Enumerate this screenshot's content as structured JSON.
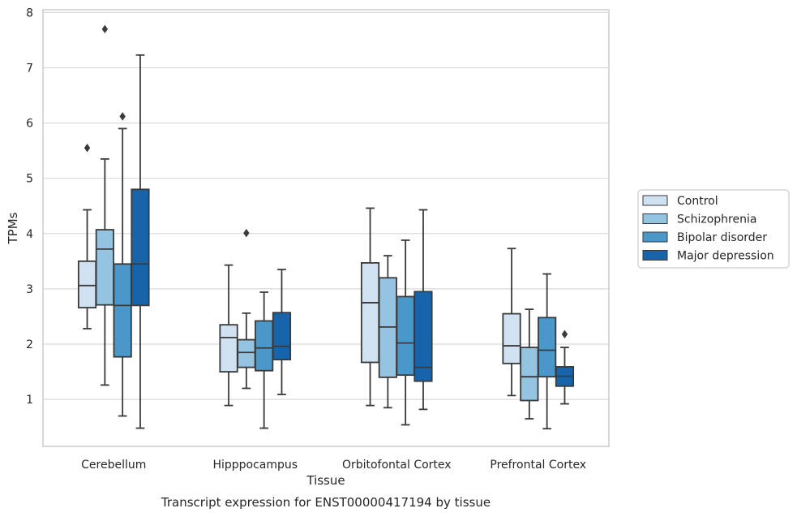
{
  "chart_data": {
    "type": "box",
    "xlabel": "Tissue",
    "ylabel": "TPMs",
    "caption": "Transcript expression for ENST00000417194 by tissue",
    "ylim": [
      0.15,
      8.05
    ],
    "yticks": [
      1,
      2,
      3,
      4,
      5,
      6,
      7,
      8
    ],
    "grid": "horizontal",
    "legend_position": "right",
    "categories": [
      "Cerebellum",
      "Hipppocampus",
      "Orbitofontal Cortex",
      "Prefrontal Cortex"
    ],
    "series": [
      {
        "name": "Control",
        "color": "#d0e1f2",
        "boxes": [
          {
            "whislo": 2.28,
            "q1": 2.66,
            "med": 3.06,
            "q3": 3.5,
            "whishi": 4.43,
            "fliers": [
              5.55
            ]
          },
          {
            "whislo": 0.89,
            "q1": 1.5,
            "med": 2.12,
            "q3": 2.35,
            "whishi": 3.43,
            "fliers": []
          },
          {
            "whislo": 0.89,
            "q1": 1.67,
            "med": 2.75,
            "q3": 3.47,
            "whishi": 4.46,
            "fliers": []
          },
          {
            "whislo": 1.07,
            "q1": 1.65,
            "med": 1.97,
            "q3": 2.55,
            "whishi": 3.73,
            "fliers": []
          }
        ]
      },
      {
        "name": "Schizophrenia",
        "color": "#94c4df",
        "boxes": [
          {
            "whislo": 1.26,
            "q1": 2.71,
            "med": 3.72,
            "q3": 4.07,
            "whishi": 5.35,
            "fliers": [
              7.7
            ]
          },
          {
            "whislo": 1.2,
            "q1": 1.58,
            "med": 1.85,
            "q3": 2.08,
            "whishi": 2.56,
            "fliers": [
              4.01
            ]
          },
          {
            "whislo": 0.85,
            "q1": 1.4,
            "med": 2.31,
            "q3": 3.2,
            "whishi": 3.6,
            "fliers": []
          },
          {
            "whislo": 0.65,
            "q1": 0.98,
            "med": 1.41,
            "q3": 1.94,
            "whishi": 2.63,
            "fliers": []
          }
        ]
      },
      {
        "name": "Bipolar disorder",
        "color": "#4a98c9",
        "boxes": [
          {
            "whislo": 0.7,
            "q1": 1.77,
            "med": 2.7,
            "q3": 3.45,
            "whishi": 5.9,
            "fliers": [
              6.12
            ]
          },
          {
            "whislo": 0.48,
            "q1": 1.52,
            "med": 1.93,
            "q3": 2.42,
            "whishi": 2.94,
            "fliers": []
          },
          {
            "whislo": 0.54,
            "q1": 1.44,
            "med": 2.02,
            "q3": 2.86,
            "whishi": 3.88,
            "fliers": []
          },
          {
            "whislo": 0.47,
            "q1": 1.41,
            "med": 1.89,
            "q3": 2.48,
            "whishi": 3.27,
            "fliers": []
          }
        ]
      },
      {
        "name": "Major depression",
        "color": "#1764ab",
        "boxes": [
          {
            "whislo": 0.48,
            "q1": 2.7,
            "med": 3.45,
            "q3": 4.8,
            "whishi": 7.23,
            "fliers": []
          },
          {
            "whislo": 1.09,
            "q1": 1.72,
            "med": 1.96,
            "q3": 2.57,
            "whishi": 3.35,
            "fliers": []
          },
          {
            "whislo": 0.82,
            "q1": 1.33,
            "med": 1.58,
            "q3": 2.95,
            "whishi": 4.43,
            "fliers": []
          },
          {
            "whislo": 0.92,
            "q1": 1.24,
            "med": 1.42,
            "q3": 1.59,
            "whishi": 1.94,
            "fliers": [
              2.18
            ]
          }
        ]
      }
    ]
  }
}
